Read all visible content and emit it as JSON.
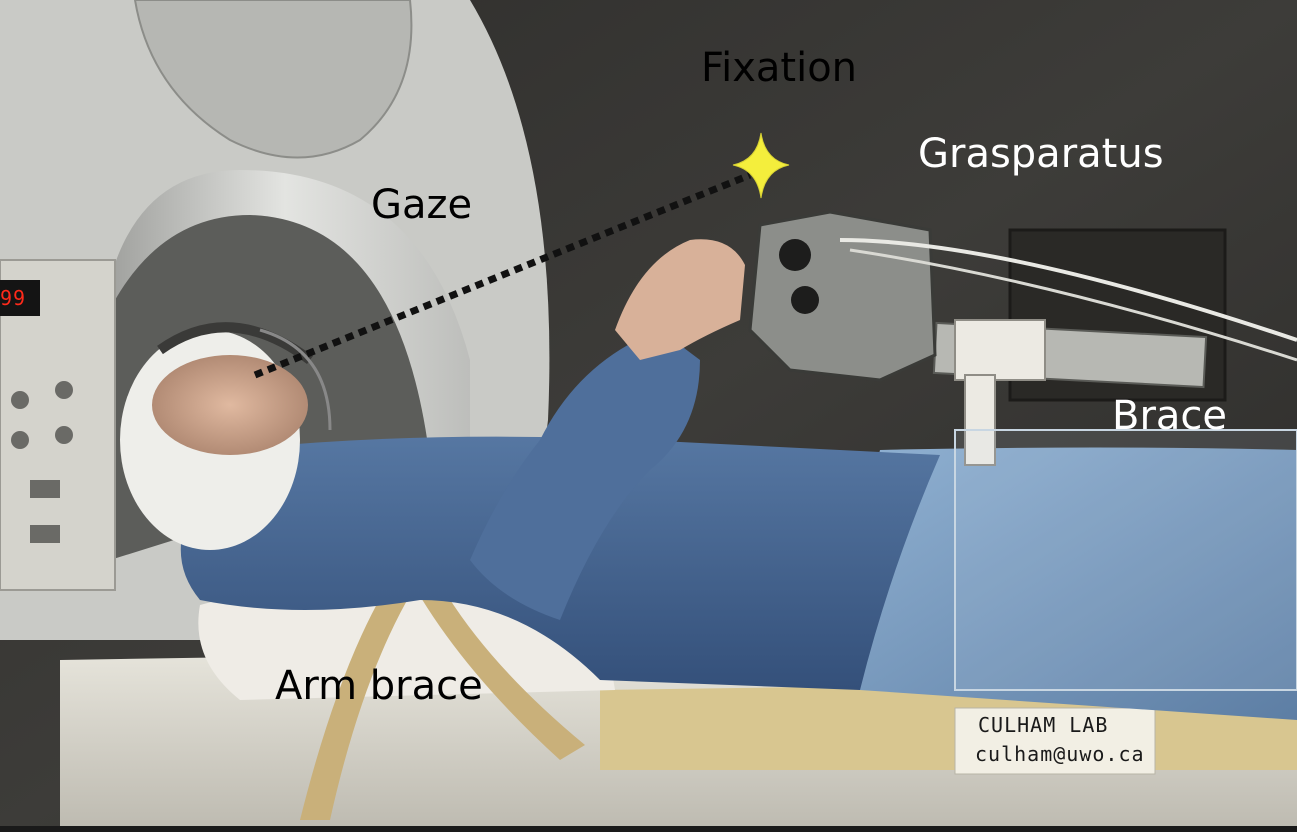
{
  "annotations": {
    "fixation": "Fixation",
    "grasparatus": "Grasparatus",
    "gaze": "Gaze",
    "brace": "Brace",
    "arm_brace": "Arm brace"
  },
  "lab_tag": {
    "line1": "CULHAM LAB",
    "line2": "culham@uwo.ca"
  },
  "scanner_display": "99",
  "colors": {
    "annotation_dark": "#000000",
    "annotation_light": "#ffffff",
    "fixation_star": "#f4ee3c",
    "gaze_line": "#111111",
    "shirt": "#4a6791",
    "jeans": "#7f9fc2",
    "scanner_bore": "#d8d9d6",
    "background_wall": "#3a3936"
  },
  "icons": {
    "fixation_marker": "four-point-star-icon"
  }
}
